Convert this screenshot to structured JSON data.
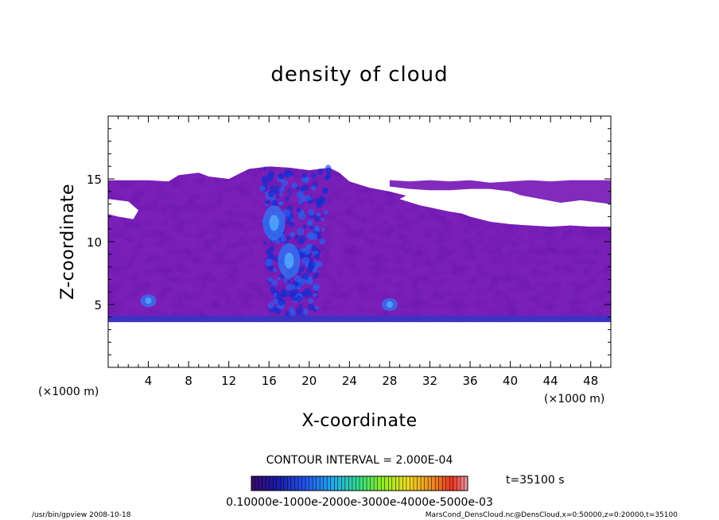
{
  "chart_data": {
    "type": "heatmap",
    "title": "density of cloud",
    "xlabel": "X-coordinate",
    "ylabel": "Z-coordinate",
    "x_unit": "(×1000 m)",
    "y_unit": "(×1000 m)",
    "xlim": [
      0,
      50
    ],
    "ylim": [
      0,
      20
    ],
    "x_ticks": [
      "4",
      "8",
      "12",
      "16",
      "20",
      "24",
      "28",
      "32",
      "36",
      "40",
      "44",
      "48"
    ],
    "y_ticks": [
      "5",
      "10",
      "15"
    ],
    "contour_interval": "CONTOUR INTERVAL = 2.000E-04",
    "time_label": "t=35100 s",
    "colorbar": {
      "ticks_text": "0.10000e-1000e-2000e-3000e-4000e-5000e-03",
      "range": [
        0,
        0.0006
      ],
      "colors": [
        "#3a0a6e",
        "#1a1aa8",
        "#2255ee",
        "#22aaee",
        "#33dd88",
        "#88ee22",
        "#eedd22",
        "#ee8822",
        "#ee3322",
        "#ee99aa"
      ]
    },
    "field": {
      "background_value_color": "#7a1fb8",
      "cloud_layer_z_range": [
        3.6,
        15.5
      ],
      "blobs": [
        {
          "x": 16.5,
          "z": 11.5,
          "note": ""
        },
        {
          "x": 18.0,
          "z": 8.5,
          "note": ""
        },
        {
          "x": 4.0,
          "z": 5.3,
          "note": ""
        },
        {
          "x": 28.0,
          "z": 5.0,
          "note": ""
        }
      ]
    }
  },
  "footer": {
    "left": "/usr/bin/gpview   2008-10-18",
    "right": "MarsCond_DensCloud.nc@DensCloud,x=0:50000,z=0:20000,t=35100"
  }
}
